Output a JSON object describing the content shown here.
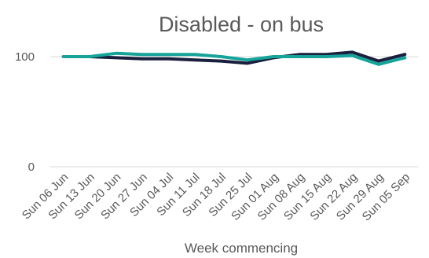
{
  "chart_data": {
    "type": "line",
    "title": "Disabled - on bus",
    "xlabel": "Week commencing",
    "ylabel": "",
    "ylim": [
      0,
      100
    ],
    "yticks": [
      0,
      100
    ],
    "grid": true,
    "legend": "none",
    "categories": [
      "Sun 06 Jun",
      "Sun 13 Jun",
      "Sun 20 Jun",
      "Sun 27 Jun",
      "Sun 04 Jul",
      "Sun 11 Jul",
      "Sun 18 Jul",
      "Sun 25 Jul",
      "Sun 01 Aug",
      "Sun 08 Aug",
      "Sun 15 Aug",
      "Sun 22 Aug",
      "Sun 29 Aug",
      "Sun 05 Sep"
    ],
    "series": [
      {
        "color": "#1a1f3d",
        "values": [
          100,
          100,
          99,
          98,
          98,
          97,
          96,
          94,
          99,
          102,
          102,
          104,
          96,
          102
        ]
      },
      {
        "color": "#15a39a",
        "values": [
          100,
          100,
          103,
          102,
          102,
          102,
          100,
          97,
          100,
          100,
          100,
          101,
          93,
          99
        ]
      }
    ]
  }
}
